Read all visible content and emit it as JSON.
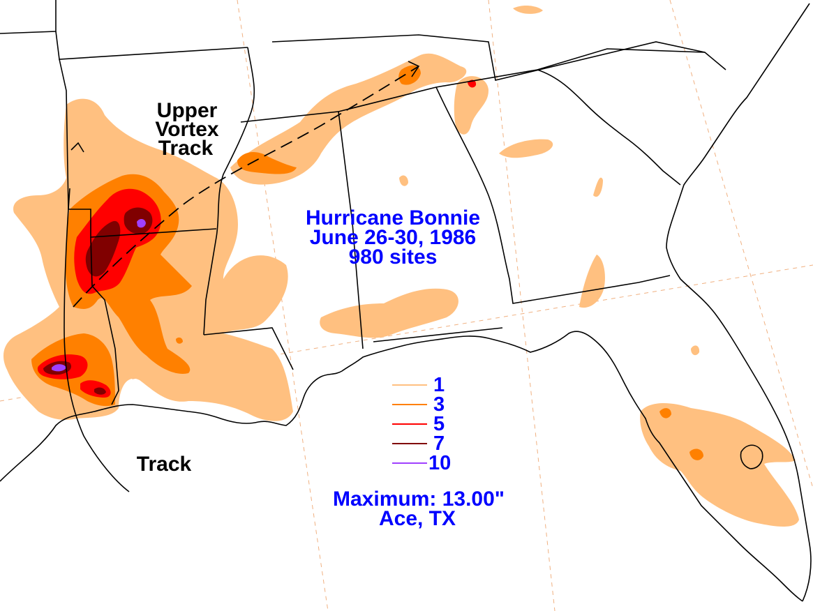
{
  "title": {
    "line1": "Hurricane Bonnie",
    "line2": "June 26-30, 1986",
    "line3": "980 sites"
  },
  "labels": {
    "upper_vortex_line1": "Upper",
    "upper_vortex_line2": "Vortex",
    "upper_vortex_line3": "Track",
    "track": "Track"
  },
  "maximum": {
    "line1": "Maximum:  13.00\"",
    "line2": "Ace, TX"
  },
  "legend": [
    {
      "value": "1",
      "color": "#ffc080"
    },
    {
      "value": "3",
      "color": "#ff8000"
    },
    {
      "value": "5",
      "color": "#ff0000"
    },
    {
      "value": "7",
      "color": "#800000"
    },
    {
      "value": "10",
      "color": "#a040ff"
    }
  ],
  "colors": {
    "grid": "#f0b080",
    "text_blue": "#0000ff",
    "text_black": "#000000"
  }
}
